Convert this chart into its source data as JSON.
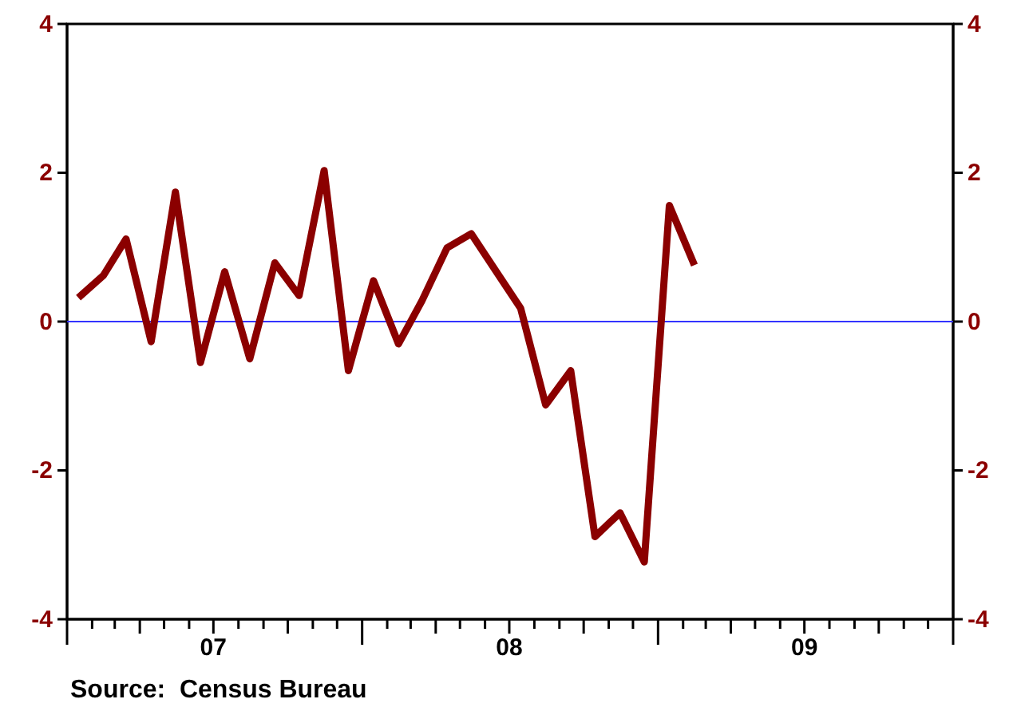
{
  "chart_data": {
    "type": "line",
    "x": [
      "2007-01-15",
      "2007-02-15",
      "2007-03-15",
      "2007-04-15",
      "2007-05-15",
      "2007-06-15",
      "2007-07-15",
      "2007-08-15",
      "2007-09-15",
      "2007-10-15",
      "2007-11-15",
      "2007-12-15",
      "2008-01-15",
      "2008-02-15",
      "2008-03-15",
      "2008-04-15",
      "2008-05-15",
      "2008-06-15",
      "2008-07-15",
      "2008-08-15",
      "2008-09-15",
      "2008-10-15",
      "2008-11-15",
      "2008-12-15",
      "2009-01-15",
      "2009-02-15"
    ],
    "series": [
      {
        "color": "#8b0000",
        "values": [
          0.32,
          0.62,
          1.11,
          -0.27,
          1.74,
          -0.55,
          0.67,
          -0.5,
          0.79,
          0.35,
          2.03,
          -0.66,
          0.55,
          -0.3,
          0.28,
          0.99,
          1.18,
          0.67,
          0.18,
          -1.12,
          -0.66,
          -2.89,
          -2.57,
          -3.23,
          1.56,
          0.76
        ]
      }
    ],
    "xlim": [
      "2007-01",
      "2010-01"
    ],
    "xticks": [
      {
        "value": "2007-01",
        "label": null
      },
      {
        "value": "2007-02",
        "label": null
      },
      {
        "value": "2007-03",
        "label": null
      },
      {
        "value": "2007-04",
        "label": null
      },
      {
        "value": "2007-05",
        "label": null
      },
      {
        "value": "2007-06",
        "label": null
      },
      {
        "value": "2007-07",
        "label": "07"
      },
      {
        "value": "2007-08",
        "label": null
      },
      {
        "value": "2007-09",
        "label": null
      },
      {
        "value": "2007-10",
        "label": null
      },
      {
        "value": "2007-11",
        "label": null
      },
      {
        "value": "2007-12",
        "label": null
      },
      {
        "value": "2008-01",
        "label": null
      },
      {
        "value": "2008-02",
        "label": null
      },
      {
        "value": "2008-03",
        "label": null
      },
      {
        "value": "2008-04",
        "label": null
      },
      {
        "value": "2008-05",
        "label": null
      },
      {
        "value": "2008-06",
        "label": null
      },
      {
        "value": "2008-07",
        "label": "08"
      },
      {
        "value": "2008-08",
        "label": null
      },
      {
        "value": "2008-09",
        "label": null
      },
      {
        "value": "2008-10",
        "label": null
      },
      {
        "value": "2008-11",
        "label": null
      },
      {
        "value": "2008-12",
        "label": null
      },
      {
        "value": "2009-01",
        "label": null
      },
      {
        "value": "2009-02",
        "label": null
      },
      {
        "value": "2009-03",
        "label": null
      },
      {
        "value": "2009-04",
        "label": null
      },
      {
        "value": "2009-05",
        "label": null
      },
      {
        "value": "2009-06",
        "label": null
      },
      {
        "value": "2009-07",
        "label": "09"
      },
      {
        "value": "2009-08",
        "label": null
      },
      {
        "value": "2009-09",
        "label": null
      },
      {
        "value": "2009-10",
        "label": null
      },
      {
        "value": "2009-11",
        "label": null
      },
      {
        "value": "2009-12",
        "label": null
      },
      {
        "value": "2010-01",
        "label": null
      }
    ],
    "ylim": [
      -4,
      4
    ],
    "yticks": [
      -4,
      -2,
      0,
      2,
      4
    ],
    "y2lim": [
      -4,
      4
    ],
    "y2ticks": [
      -4,
      -2,
      0,
      2,
      4
    ],
    "ref_lines": [
      {
        "axis": "y",
        "value": 0,
        "color": "#3333ff"
      }
    ],
    "grid": false,
    "line_style": "solid",
    "marker": "none",
    "annotations": [
      "Source:  Census Bureau"
    ]
  }
}
